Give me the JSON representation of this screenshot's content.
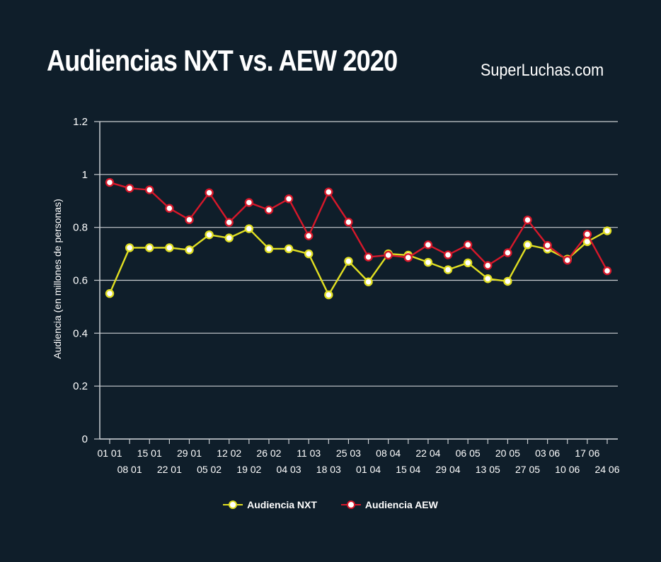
{
  "title": "Audiencias NXT vs. AEW 2020",
  "brand": "SuperLuchas.com",
  "colors": {
    "background": "#0f1e2a",
    "nxt": "#e1df22",
    "aew": "#d7182a",
    "grid": "#c9cdd1",
    "text": "#ffffff"
  },
  "chart_data": {
    "type": "line",
    "ylabel": "Audiencia (en millones de personas)",
    "xlabel": "",
    "ylim": [
      0,
      1.2
    ],
    "yticks": [
      "0",
      "0.2",
      "0.4",
      "0.6",
      "0.8",
      "1",
      "1.2"
    ],
    "grid": true,
    "legend_position": "bottom",
    "categories": [
      "01 01",
      "08 01",
      "15 01",
      "22 01",
      "29 01",
      "05 02",
      "12 02",
      "19 02",
      "26 02",
      "04 03",
      "11 03",
      "18 03",
      "25 03",
      "01 04",
      "08 04",
      "15 04",
      "22 04",
      "29 04",
      "06 05",
      "13 05",
      "20 05",
      "27 05",
      "03 06",
      "10 06",
      "17 06",
      "24 06"
    ],
    "series": [
      {
        "name": "Audiencia NXT",
        "values": [
          0.55,
          0.723,
          0.723,
          0.723,
          0.715,
          0.772,
          0.76,
          0.795,
          0.719,
          0.719,
          0.7,
          0.545,
          0.672,
          0.594,
          0.7,
          0.695,
          0.668,
          0.64,
          0.666,
          0.606,
          0.596,
          0.734,
          0.718,
          0.68,
          0.746,
          0.787
        ]
      },
      {
        "name": "Audiencia AEW",
        "values": [
          0.97,
          0.948,
          0.942,
          0.872,
          0.829,
          0.931,
          0.819,
          0.894,
          0.866,
          0.908,
          0.768,
          0.934,
          0.82,
          0.688,
          0.695,
          0.686,
          0.734,
          0.696,
          0.734,
          0.656,
          0.704,
          0.828,
          0.732,
          0.676,
          0.774,
          0.636
        ]
      }
    ]
  }
}
